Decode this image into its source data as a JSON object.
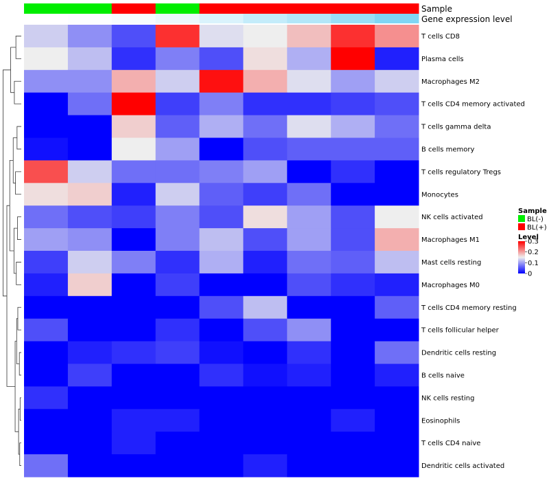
{
  "chart_data": {
    "type": "heatmap",
    "annotation_labels": {
      "sample": "Sample",
      "expression": "Gene expression level"
    },
    "columns": [
      {
        "sample": "BL(-)",
        "expression": 0.0
      },
      {
        "sample": "BL(-)",
        "expression": 0.02
      },
      {
        "sample": "BL(+)",
        "expression": 0.05
      },
      {
        "sample": "BL(-)",
        "expression": 0.12
      },
      {
        "sample": "BL(+)",
        "expression": 0.22
      },
      {
        "sample": "BL(+)",
        "expression": 0.35
      },
      {
        "sample": "BL(+)",
        "expression": 0.45
      },
      {
        "sample": "BL(+)",
        "expression": 0.6
      },
      {
        "sample": "BL(+)",
        "expression": 0.75
      }
    ],
    "rows": [
      {
        "name": "T cells CD8",
        "values": [
          0.13,
          0.09,
          0.05,
          0.27,
          0.14,
          0.15,
          0.18,
          0.27,
          0.21
        ]
      },
      {
        "name": "Plasma cells",
        "values": [
          0.15,
          0.12,
          0.03,
          0.08,
          0.05,
          0.16,
          0.11,
          0.3,
          0.02
        ]
      },
      {
        "name": "Macrophages M2",
        "values": [
          0.09,
          0.09,
          0.19,
          0.13,
          0.29,
          0.19,
          0.14,
          0.1,
          0.13
        ]
      },
      {
        "name": "T cells CD4 memory activated",
        "values": [
          0.0,
          0.07,
          0.3,
          0.04,
          0.08,
          0.03,
          0.03,
          0.04,
          0.05
        ]
      },
      {
        "name": "T cells gamma delta",
        "values": [
          0.0,
          0.0,
          0.17,
          0.06,
          0.11,
          0.07,
          0.14,
          0.11,
          0.07
        ]
      },
      {
        "name": "B cells memory",
        "values": [
          0.01,
          0.0,
          0.15,
          0.1,
          0.0,
          0.05,
          0.06,
          0.06,
          0.06
        ]
      },
      {
        "name": "T cells regulatory  Tregs",
        "values": [
          0.25,
          0.13,
          0.07,
          0.07,
          0.08,
          0.1,
          0.0,
          0.03,
          0.0
        ]
      },
      {
        "name": "Monocytes",
        "values": [
          0.16,
          0.17,
          0.02,
          0.13,
          0.06,
          0.04,
          0.07,
          0.0,
          0.0
        ]
      },
      {
        "name": "NK cells activated",
        "values": [
          0.07,
          0.05,
          0.04,
          0.08,
          0.05,
          0.16,
          0.1,
          0.05,
          0.15
        ]
      },
      {
        "name": "Macrophages M1",
        "values": [
          0.1,
          0.09,
          0.0,
          0.08,
          0.12,
          0.05,
          0.1,
          0.05,
          0.19
        ]
      },
      {
        "name": "Mast cells resting",
        "values": [
          0.04,
          0.13,
          0.08,
          0.03,
          0.11,
          0.02,
          0.07,
          0.06,
          0.12
        ]
      },
      {
        "name": "Macrophages M0",
        "values": [
          0.02,
          0.17,
          0.0,
          0.04,
          0.0,
          0.0,
          0.05,
          0.03,
          0.02
        ]
      },
      {
        "name": "T cells CD4 memory resting",
        "values": [
          0.0,
          0.0,
          0.0,
          0.0,
          0.05,
          0.12,
          0.0,
          0.0,
          0.06
        ]
      },
      {
        "name": "T cells follicular helper",
        "values": [
          0.05,
          0.0,
          0.0,
          0.03,
          0.0,
          0.05,
          0.09,
          0.0,
          0.0
        ]
      },
      {
        "name": "Dendritic cells resting",
        "values": [
          0.0,
          0.02,
          0.03,
          0.04,
          0.01,
          0.0,
          0.03,
          0.0,
          0.07
        ]
      },
      {
        "name": "B cells naive",
        "values": [
          0.0,
          0.04,
          0.0,
          0.0,
          0.03,
          0.01,
          0.02,
          0.0,
          0.02
        ]
      },
      {
        "name": "NK cells resting",
        "values": [
          0.03,
          0.0,
          0.0,
          0.0,
          0.0,
          0.0,
          0.0,
          0.0,
          0.0
        ]
      },
      {
        "name": "Eosinophils",
        "values": [
          0.0,
          0.0,
          0.02,
          0.02,
          0.0,
          0.0,
          0.0,
          0.02,
          0.0
        ]
      },
      {
        "name": "T cells CD4 naive",
        "values": [
          0.0,
          0.0,
          0.02,
          0.0,
          0.0,
          0.0,
          0.0,
          0.0,
          0.0
        ]
      },
      {
        "name": "Dendritic cells activated",
        "values": [
          0.07,
          0.0,
          0.0,
          0.0,
          0.0,
          0.02,
          0.0,
          0.0,
          0.0
        ]
      }
    ],
    "legend": {
      "sample_title": "Sample",
      "sample_items": [
        {
          "label": "BL(-)",
          "color": "#00ee00"
        },
        {
          "label": "BL(+)",
          "color": "#ff0000"
        }
      ],
      "level_title": "Level",
      "level_ticks": [
        "0.3",
        "0.2",
        "0.1",
        "0"
      ],
      "level_tick_values": [
        0.3,
        0.2,
        0.1,
        0
      ]
    },
    "color_scale": {
      "low": "#0000ff",
      "mid": "#eeeeee",
      "high": "#ff0000",
      "min": 0,
      "mid_value": 0.15,
      "max": 0.3
    },
    "expression_scale": {
      "low": "#ffffff",
      "high": "#55c8f0"
    },
    "legend_placement": "right",
    "dendrogram": "left"
  }
}
